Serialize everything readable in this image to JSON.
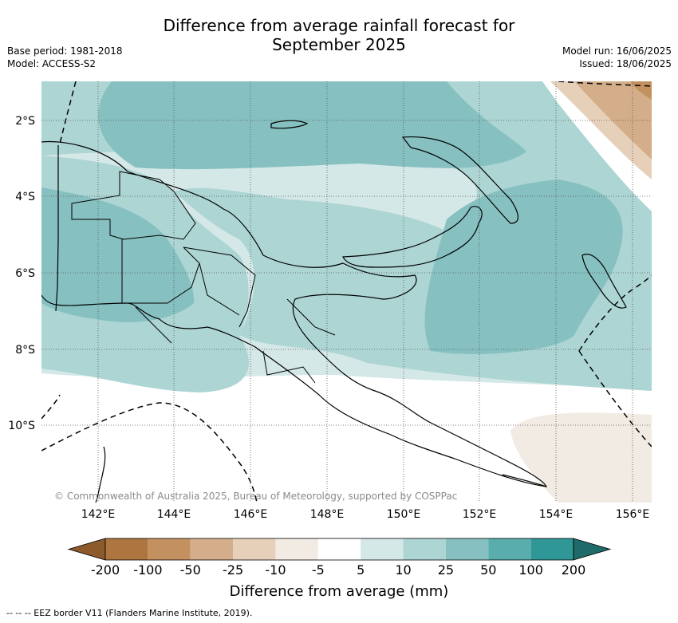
{
  "title_line1": "Difference from average rainfall forecast for",
  "title_line2": "September 2025",
  "meta": {
    "base_period": "Base period: 1981-2018",
    "model": "Model: ACCESS-S2",
    "model_run": "Model run: 16/06/2025",
    "issued": "Issued: 18/06/2025"
  },
  "map": {
    "lat_labels": [
      "2°S",
      "4°S",
      "6°S",
      "8°S",
      "10°S"
    ],
    "lon_labels": [
      "142°E",
      "144°E",
      "146°E",
      "148°E",
      "150°E",
      "152°E",
      "154°E",
      "156°E"
    ],
    "copyright": "© Commonwealth of Australia 2025, Bureau of Meteorology, supported by COSPPac"
  },
  "colorbar": {
    "title": "Difference from average (mm)",
    "labels": [
      "-200",
      "-100",
      "-50",
      "-25",
      "-10",
      "-5",
      "5",
      "10",
      "25",
      "50",
      "100",
      "200"
    ],
    "colors": [
      "#8c5a2b",
      "#ad7640",
      "#c3915f",
      "#d4ae8a",
      "#e6d0ba",
      "#f1ebe4",
      "#ffffff",
      "#d4e8e7",
      "#acd5d4",
      "#86c0c0",
      "#5aadad",
      "#2f9795",
      "#1f6b69"
    ]
  },
  "footer": "--  --  -- EEZ border V11 (Flanders Marine Institute, 2019)."
}
